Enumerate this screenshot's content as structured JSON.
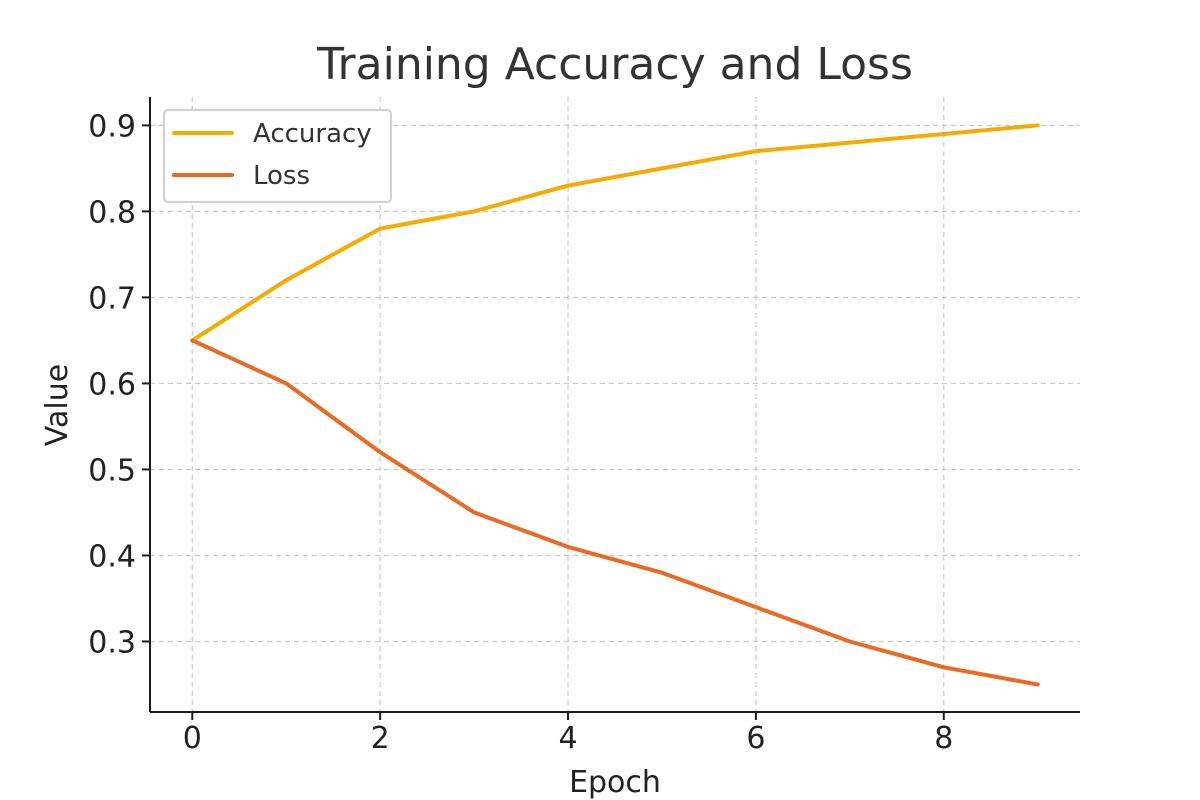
{
  "chart_data": {
    "type": "line",
    "title": "Training Accuracy and Loss",
    "xlabel": "Epoch",
    "ylabel": "Value",
    "x": [
      0,
      1,
      2,
      3,
      4,
      5,
      6,
      7,
      8,
      9
    ],
    "xlim": [
      -0.45,
      9.45
    ],
    "ylim": [
      0.218,
      0.933
    ],
    "xticks": [
      0,
      2,
      4,
      6,
      8
    ],
    "yticks": [
      0.3,
      0.4,
      0.5,
      0.6,
      0.7,
      0.8,
      0.9
    ],
    "xtick_labels": [
      "0",
      "2",
      "4",
      "6",
      "8"
    ],
    "ytick_labels": [
      "0.3",
      "0.4",
      "0.5",
      "0.6",
      "0.7",
      "0.8",
      "0.9"
    ],
    "grid": true,
    "legend_position": "top-left",
    "series": [
      {
        "name": "Accuracy",
        "color": "#f5ab00",
        "values": [
          0.65,
          0.72,
          0.78,
          0.8,
          0.83,
          0.85,
          0.87,
          0.88,
          0.89,
          0.9
        ]
      },
      {
        "name": "Loss",
        "color": "#ea6a24",
        "values": [
          0.65,
          0.6,
          0.52,
          0.45,
          0.41,
          0.38,
          0.34,
          0.3,
          0.27,
          0.25
        ]
      }
    ]
  }
}
